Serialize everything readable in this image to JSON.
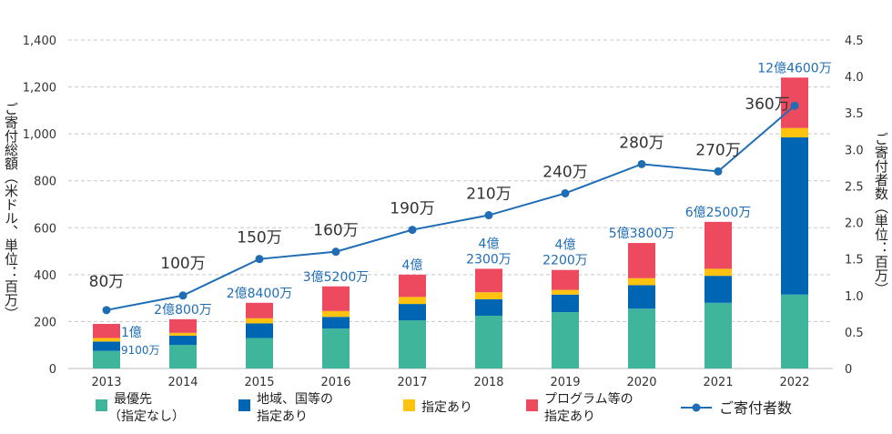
{
  "chart_data": {
    "type": "bar",
    "stacked": true,
    "categories": [
      "2013",
      "2014",
      "2015",
      "2016",
      "2017",
      "2018",
      "2019",
      "2020",
      "2021",
      "2022"
    ],
    "series": [
      {
        "name": "最優先\n（指定なし）",
        "color": "#3fb59c",
        "values": [
          75,
          100,
          130,
          170,
          205,
          225,
          240,
          255,
          280,
          315
        ]
      },
      {
        "name": "地域、国等の\n指定あり",
        "color": "#0066b3",
        "values": [
          40,
          40,
          62,
          50,
          70,
          70,
          75,
          100,
          115,
          670
        ]
      },
      {
        "name": "指定あり",
        "color": "#ffc20e",
        "values": [
          15,
          12,
          22,
          25,
          30,
          30,
          20,
          30,
          30,
          40
        ]
      },
      {
        "name": "プログラム等の\n指定あり",
        "color": "#ee4a5f",
        "values": [
          60,
          58,
          66,
          105,
          95,
          100,
          85,
          150,
          200,
          215
        ]
      }
    ],
    "line_series": {
      "name": "ご寄付者数",
      "color": "#1f6db5",
      "values": [
        0.8,
        1.0,
        1.5,
        1.6,
        1.9,
        2.1,
        2.4,
        2.8,
        2.7,
        3.6
      ],
      "labels": [
        "80万",
        "100万",
        "150万",
        "160万",
        "190万",
        "210万",
        "240万",
        "280万",
        "270万",
        "360万"
      ]
    },
    "bar_total_labels": [
      [
        "1億",
        "9100万"
      ],
      [
        "2億800万"
      ],
      [
        "2億8400万"
      ],
      [
        "3億5200万"
      ],
      [
        "4億"
      ],
      [
        "4億",
        "2300万"
      ],
      [
        "4億",
        "2200万"
      ],
      [
        "5億3800万"
      ],
      [
        "6億2500万"
      ],
      [
        "12億4600万"
      ]
    ],
    "y_left": {
      "label": "ご寄付総額（米ドル、単位：百万）",
      "ylim": [
        0,
        1400
      ],
      "ticks": [
        "0",
        "200",
        "400",
        "600",
        "800",
        "1,000",
        "1,200",
        "1,400"
      ]
    },
    "y_right": {
      "label": "ご寄付者数（単位：百万）",
      "ylim": [
        0,
        4.5
      ],
      "ticks": [
        "0",
        "0.5",
        "1.0",
        "1.5",
        "2.0",
        "2.5",
        "3.0",
        "3.5",
        "4.0",
        "4.5"
      ]
    },
    "grid": true,
    "legend_position": "bottom"
  }
}
